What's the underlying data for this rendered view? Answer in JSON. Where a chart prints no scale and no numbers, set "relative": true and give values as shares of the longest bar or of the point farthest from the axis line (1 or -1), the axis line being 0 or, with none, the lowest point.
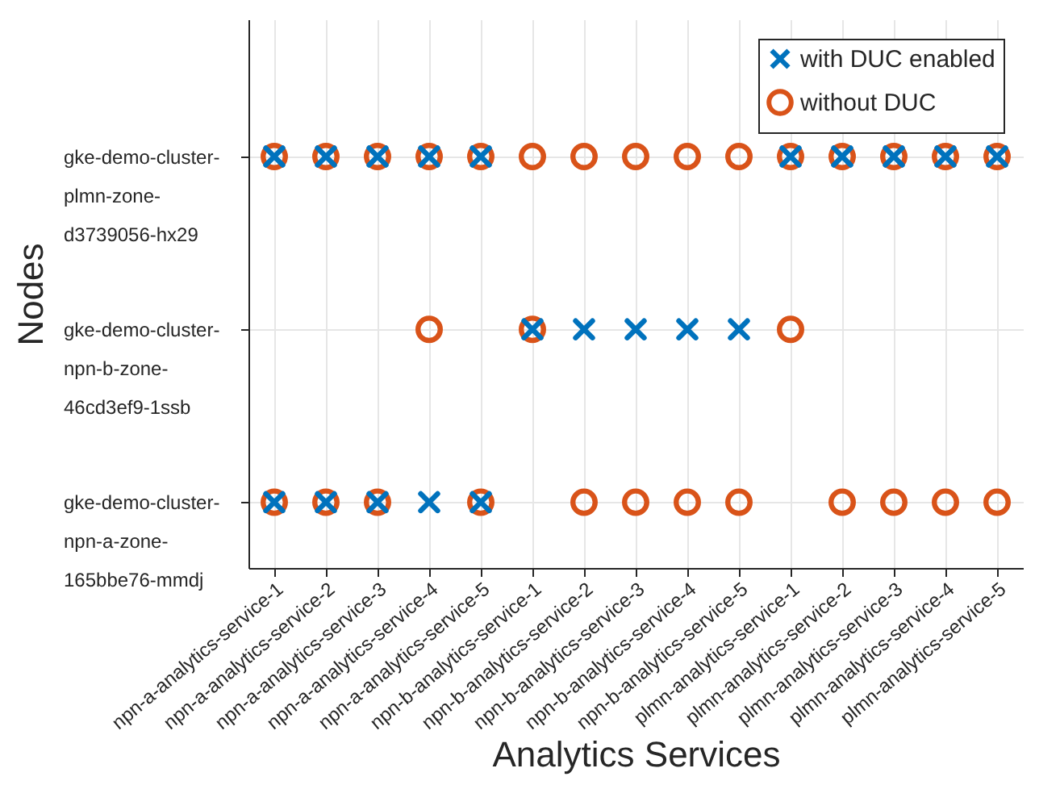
{
  "chart_data": {
    "type": "scatter",
    "xlabel": "Analytics Services",
    "ylabel": "Nodes",
    "relative": true,
    "categories": [
      "npn-a-analytics-service-1",
      "npn-a-analytics-service-2",
      "npn-a-analytics-service-3",
      "npn-a-analytics-service-4",
      "npn-a-analytics-service-5",
      "npn-b-analytics-service-1",
      "npn-b-analytics-service-2",
      "npn-b-analytics-service-3",
      "npn-b-analytics-service-4",
      "npn-b-analytics-service-5",
      "plmn-analytics-service-1",
      "plmn-analytics-service-2",
      "plmn-analytics-service-3",
      "plmn-analytics-service-4",
      "plmn-analytics-service-5"
    ],
    "y_categories": [
      "gke-demo-cluster-plmn-zone-d3739056-hx29",
      "gke-demo-cluster-npn-b-zone-46cd3ef9-1ssb",
      "gke-demo-cluster-npn-a-zone-165bbe76-mmdj"
    ],
    "series": [
      {
        "name": "without DUC",
        "color": "#d95319",
        "marker": "circle",
        "x": [
          "npn-a-analytics-service-1",
          "npn-a-analytics-service-2",
          "npn-a-analytics-service-3",
          "npn-a-analytics-service-4",
          "npn-a-analytics-service-5",
          "npn-b-analytics-service-1",
          "npn-b-analytics-service-2",
          "npn-b-analytics-service-3",
          "npn-b-analytics-service-4",
          "npn-b-analytics-service-5",
          "plmn-analytics-service-1",
          "plmn-analytics-service-2",
          "plmn-analytics-service-3",
          "plmn-analytics-service-4",
          "plmn-analytics-service-5",
          "npn-a-analytics-service-4",
          "npn-b-analytics-service-1",
          "plmn-analytics-service-1",
          "npn-a-analytics-service-1",
          "npn-a-analytics-service-2",
          "npn-a-analytics-service-3",
          "npn-a-analytics-service-5",
          "npn-b-analytics-service-2",
          "npn-b-analytics-service-3",
          "npn-b-analytics-service-4",
          "npn-b-analytics-service-5",
          "plmn-analytics-service-2",
          "plmn-analytics-service-3",
          "plmn-analytics-service-4",
          "plmn-analytics-service-5"
        ],
        "values": [
          1,
          1,
          1,
          1,
          1,
          1,
          1,
          1,
          1,
          1,
          1,
          1,
          1,
          1,
          1,
          0.58,
          0.58,
          0.58,
          0.16,
          0.16,
          0.16,
          0.16,
          0.16,
          0.16,
          0.16,
          0.16,
          0.16,
          0.16,
          0.16,
          0.16
        ]
      },
      {
        "name": "with DUC enabled",
        "color": "#0072bd",
        "marker": "cross",
        "x": [
          "npn-a-analytics-service-1",
          "npn-a-analytics-service-2",
          "npn-a-analytics-service-3",
          "npn-a-analytics-service-4",
          "npn-a-analytics-service-5",
          "plmn-analytics-service-1",
          "plmn-analytics-service-2",
          "plmn-analytics-service-3",
          "plmn-analytics-service-4",
          "plmn-analytics-service-5",
          "npn-b-analytics-service-1",
          "npn-b-analytics-service-2",
          "npn-b-analytics-service-3",
          "npn-b-analytics-service-4",
          "npn-b-analytics-service-5",
          "npn-a-analytics-service-1",
          "npn-a-analytics-service-2",
          "npn-a-analytics-service-3",
          "npn-a-analytics-service-4",
          "npn-a-analytics-service-5"
        ],
        "values": [
          1,
          1,
          1,
          1,
          1,
          1,
          1,
          1,
          1,
          1,
          0.58,
          0.58,
          0.58,
          0.58,
          0.58,
          0.16,
          0.16,
          0.16,
          0.16,
          0.16
        ]
      }
    ],
    "legend": "top right",
    "grid": true
  }
}
